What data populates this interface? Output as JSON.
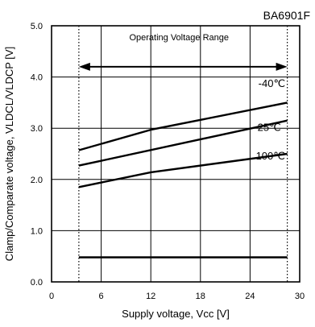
{
  "chart_data": {
    "type": "line",
    "title": "BA6901F",
    "xlabel": "Supply voltage, Vcc [V]",
    "ylabel": "Clamp/Comparate voltage, VLDCL/VLDCP [V]",
    "xlim": [
      0,
      30
    ],
    "ylim": [
      0,
      5
    ],
    "x_ticks": [
      0,
      6,
      12,
      18,
      24,
      30
    ],
    "y_ticks": [
      0,
      1,
      2,
      3,
      4,
      5
    ],
    "x_tick_labels": [
      "0",
      "6",
      "12",
      "18",
      "24",
      "30"
    ],
    "y_tick_labels": [
      "0.0",
      "1.0",
      "2.0",
      "3.0",
      "4.0",
      "5.0"
    ],
    "grid": true,
    "annotation": {
      "text": "Operating Voltage Range",
      "range": [
        3.3,
        28.5
      ],
      "arrow_y": 4.2
    },
    "series": [
      {
        "name": "-40℃",
        "x": [
          3.3,
          12,
          28.5
        ],
        "y": [
          2.57,
          2.97,
          3.5
        ],
        "label_x": 25,
        "label_y": 3.88
      },
      {
        "name": "25℃",
        "x": [
          3.3,
          28.5
        ],
        "y": [
          2.27,
          3.15
        ],
        "label_x": 24.9,
        "label_y": 3.03
      },
      {
        "name": "100℃",
        "x": [
          3.3,
          12,
          28.5
        ],
        "y": [
          1.85,
          2.14,
          2.5
        ],
        "label_x": 24.7,
        "label_y": 2.47
      },
      {
        "name": "",
        "x": [
          3.3,
          28.5
        ],
        "y": [
          0.48,
          0.48
        ]
      }
    ]
  }
}
